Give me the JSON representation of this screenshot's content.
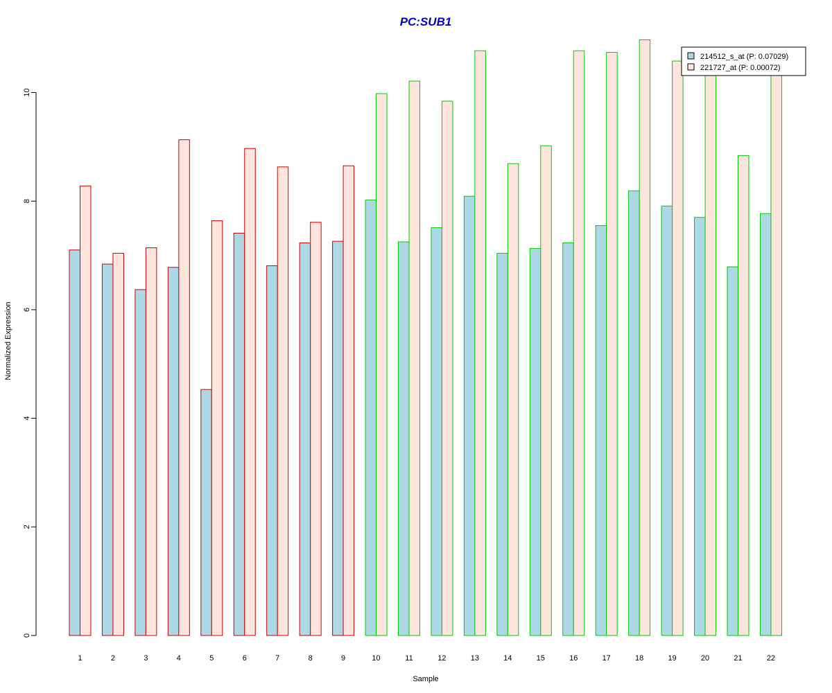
{
  "chart_data": {
    "type": "bar",
    "title": "PC:SUB1",
    "xlabel": "Sample",
    "ylabel": "Normalized Expression",
    "ylim": [
      0,
      11
    ],
    "yticks": [
      0,
      2,
      4,
      6,
      8,
      10
    ],
    "grid": false,
    "legend_position": "top-right",
    "categories": [
      "1",
      "2",
      "3",
      "4",
      "5",
      "6",
      "7",
      "8",
      "9",
      "10",
      "11",
      "12",
      "13",
      "14",
      "15",
      "16",
      "17",
      "18",
      "19",
      "20",
      "21",
      "22"
    ],
    "series": [
      {
        "name": "214512_s_at (P: 0.07029)",
        "fill": "#add8e6",
        "values": [
          7.1,
          6.84,
          6.37,
          6.78,
          4.53,
          7.41,
          6.81,
          7.23,
          7.26,
          8.02,
          7.25,
          7.51,
          8.09,
          7.04,
          7.13,
          7.23,
          7.55,
          8.19,
          7.91,
          7.7,
          6.79,
          7.77
        ]
      },
      {
        "name": "221727_at (P: 0.00072)",
        "fill": "#fde4dc",
        "values": [
          8.28,
          7.04,
          7.14,
          9.13,
          7.64,
          8.97,
          8.63,
          7.61,
          8.65,
          9.98,
          10.21,
          9.84,
          10.77,
          8.69,
          9.02,
          10.77,
          10.74,
          10.97,
          10.58,
          10.48,
          8.84,
          10.46
        ]
      }
    ],
    "group_border_colors": [
      "#cc0000",
      "#cc0000",
      "#cc0000",
      "#cc0000",
      "#cc0000",
      "#cc0000",
      "#cc0000",
      "#cc0000",
      "#cc0000",
      "#00cc00",
      "#00cc00",
      "#00cc00",
      "#00cc00",
      "#00cc00",
      "#00cc00",
      "#00cc00",
      "#00cc00",
      "#00cc00",
      "#00cc00",
      "#00cc00",
      "#00cc00",
      "#00cc00"
    ],
    "title_color": "#0000cc"
  }
}
